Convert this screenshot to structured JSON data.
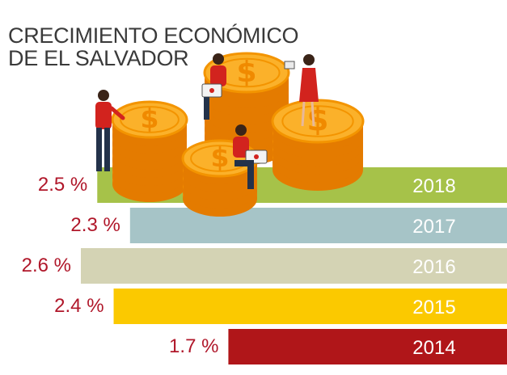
{
  "title": {
    "line1": "CRECIMIENTO ECONÓMICO",
    "line2": "DE EL SALVADOR"
  },
  "chart_data": {
    "type": "bar",
    "orientation": "horizontal",
    "title": "CRECIMIENTO ECONÓMICO DE EL SALVADOR",
    "categories": [
      "2018",
      "2017",
      "2016",
      "2015",
      "2014"
    ],
    "values": [
      2.5,
      2.3,
      2.6,
      2.4,
      1.7
    ],
    "value_labels": [
      "2.5 %",
      "2.3 %",
      "2.6 %",
      "2.4 %",
      "1.7 %"
    ],
    "colors": [
      "#a6c249",
      "#a6c4c7",
      "#d4d3b4",
      "#fbc900",
      "#b01619"
    ],
    "bars_anchored": "right",
    "grid": false,
    "xlabel": "",
    "ylabel": ""
  },
  "illustration": {
    "description_icons": [
      "coin-stack-icon",
      "person-icon"
    ]
  }
}
